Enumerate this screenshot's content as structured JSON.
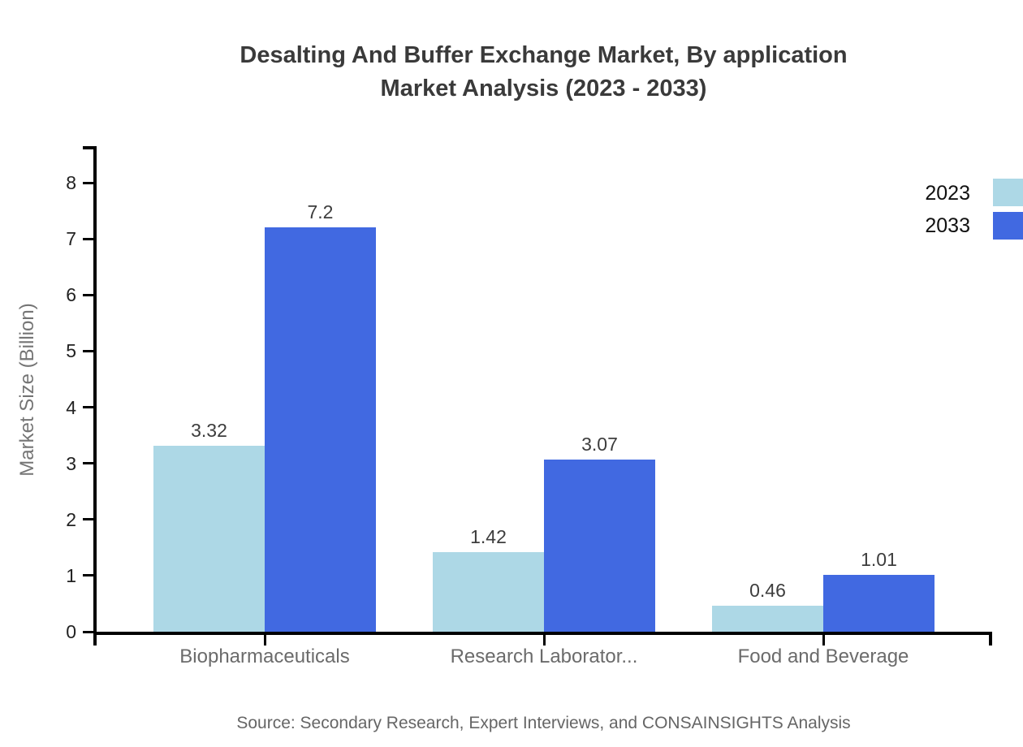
{
  "title": {
    "line1": "Desalting And Buffer Exchange Market, By application",
    "line2": "Market Analysis (2023 - 2033)"
  },
  "source": "Source: Secondary Research, Expert Interviews, and CONSAINSIGHTS Analysis",
  "legend": {
    "items": [
      {
        "label": "2023",
        "color": "#ADD8E6"
      },
      {
        "label": "2033",
        "color": "#4169E1"
      }
    ],
    "position": "top-right"
  },
  "chart_data": {
    "type": "bar",
    "title": "Desalting And Buffer Exchange Market, By application Market Analysis (2023 - 2033)",
    "categories": [
      "Biopharmaceuticals",
      "Research Laborator...",
      "Food and Beverage"
    ],
    "series": [
      {
        "name": "2023",
        "color": "#ADD8E6",
        "values": [
          3.32,
          1.42,
          0.46
        ]
      },
      {
        "name": "2033",
        "color": "#4169E1",
        "values": [
          7.2,
          3.07,
          1.01
        ]
      }
    ],
    "xlabel": "",
    "ylabel": "Market Size (Billion)",
    "ylim": [
      0,
      8
    ],
    "yticks": [
      0,
      1,
      2,
      3,
      4,
      5,
      6,
      7,
      8
    ],
    "grid": false,
    "value_labels": true,
    "axis_color": "#000000",
    "title_color": "#3a3a3a",
    "tick_label_color": "#222222",
    "category_label_color": "#6b6b6b"
  }
}
